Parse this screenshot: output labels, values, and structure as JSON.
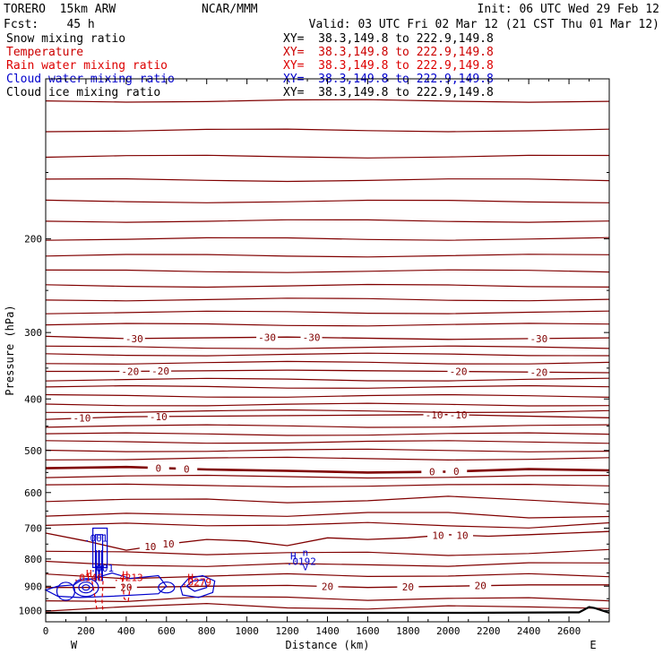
{
  "header": {
    "model": "TORERO  15km ARW",
    "center": "NCAR/MMM",
    "init": "Init: 06 UTC Wed 29 Feb 12",
    "fcst": "Fcst:    45 h",
    "valid": "Valid: 03 UTC Fri 02 Mar 12 (21 CST Thu 01 Mar 12)"
  },
  "fields": [
    {
      "name": "Snow mixing ratio",
      "xy": "XY=  38.3,149.8 to 222.9,149.8",
      "color": "#000000"
    },
    {
      "name": "Temperature",
      "xy": "XY=  38.3,149.8 to 222.9,149.8",
      "color": "#cc0000"
    },
    {
      "name": "Rain water mixing ratio",
      "xy": "XY=  38.3,149.8 to 222.9,149.8",
      "color": "#dd0000"
    },
    {
      "name": "Cloud water mixing ratio",
      "xy": "XY=  38.3,149.8 to 222.9,149.8",
      "color": "#0000cc"
    },
    {
      "name": "Cloud ice mixing ratio",
      "xy": "XY=  38.3,149.8 to 222.9,149.8",
      "color": "#000000"
    }
  ],
  "chart_data": {
    "type": "line",
    "xlabel": "Distance (km)",
    "ylabel": "Pressure (hPa)",
    "xlim": [
      0,
      2800
    ],
    "ylim": [
      1050,
      100
    ],
    "y_scale": "log",
    "x_ticks": [
      0,
      200,
      400,
      600,
      800,
      1000,
      1200,
      1400,
      1600,
      1800,
      2000,
      2200,
      2400,
      2600
    ],
    "y_ticks": [
      200,
      300,
      400,
      500,
      600,
      700,
      800,
      900,
      1000
    ],
    "x_end_labels": {
      "left": "W",
      "right": "E"
    },
    "colors": {
      "temperature": "#800000",
      "cloud_water": "#0000cc",
      "rain_water": "#dd0000",
      "ground": "#000000"
    },
    "temperature_contours": [
      {
        "label": "-30",
        "x": [
          0,
          400,
          1200,
          2000,
          2800
        ],
        "p": [
          305,
          308,
          306,
          309,
          307
        ],
        "label_x": [
          440,
          1100,
          1320,
          2450
        ]
      },
      {
        "label": "-20",
        "x": [
          0,
          400,
          1200,
          2000,
          2800
        ],
        "p": [
          355,
          355,
          353,
          355,
          357
        ],
        "label_x": [
          420,
          570,
          2050,
          2450
        ]
      },
      {
        "label": "-10",
        "x": [
          0,
          400,
          1200,
          2000,
          2800
        ],
        "p": [
          437,
          432,
          430,
          428,
          434
        ],
        "label_x": [
          180,
          560,
          1930,
          2050
        ]
      },
      {
        "label": "0",
        "x": [
          0,
          400,
          800,
          1200,
          1600,
          2000,
          2400,
          2800
        ],
        "p": [
          540,
          537,
          543,
          546,
          550,
          548,
          542,
          545
        ],
        "label_x": [
          560,
          700,
          1920,
          2040
        ]
      },
      {
        "label": "10",
        "x": [
          0,
          200,
          400,
          600,
          800,
          1000,
          1200,
          1400,
          1600,
          1800,
          2000,
          2200,
          2400,
          2600,
          2800
        ],
        "p": [
          715,
          740,
          770,
          750,
          735,
          740,
          755,
          730,
          735,
          730,
          720,
          725,
          720,
          715,
          710
        ],
        "label_x": [
          520,
          610,
          1950,
          2070
        ]
      },
      {
        "label": "20",
        "x": [
          0,
          400,
          800,
          1200,
          1600,
          2000,
          2400,
          2800
        ],
        "p": [
          905,
          905,
          900,
          897,
          905,
          900,
          895,
          895
        ],
        "label_x": [
          400,
          1400,
          1800,
          2160
        ]
      }
    ],
    "cloud_water_labels": [
      ".001",
      ".001",
      "H",
      ".0192",
      "n",
      "v"
    ],
    "rain_water_labels": [
      ".0146",
      "H",
      ".4213",
      "H",
      ".0279",
      "H"
    ],
    "annotations": [
      ".001",
      ".001",
      ".0192",
      ".0146",
      ".4213",
      ".0279"
    ]
  }
}
